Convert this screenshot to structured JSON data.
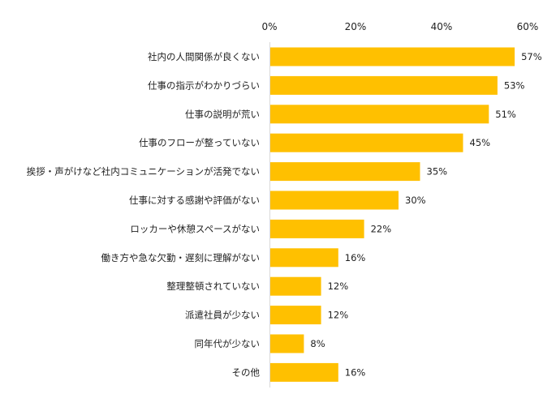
{
  "chart_data": {
    "type": "bar",
    "orientation": "horizontal",
    "title": "",
    "xlabel": "",
    "ylabel": "",
    "xlim": [
      0,
      60
    ],
    "ticks": [
      0,
      20,
      40,
      60
    ],
    "tick_labels": [
      "0%",
      "20%",
      "40%",
      "60%"
    ],
    "categories": [
      "社内の人間関係が良くない",
      "仕事の指示がわかりづらい",
      "仕事の説明が荒い",
      "仕事のフローが整っていない",
      "挨拶・声がけなど社内コミュニケーションが活発でない",
      "仕事に対する感謝や評価がない",
      "ロッカーや休憩スペースがない",
      "働き方や急な欠勤・遅刻に理解がない",
      "整理整頓されていない",
      "派遣社員が少ない",
      "同年代が少ない",
      "その他"
    ],
    "values": [
      57,
      53,
      51,
      45,
      35,
      30,
      22,
      16,
      12,
      12,
      8,
      16
    ],
    "value_labels": [
      "57%",
      "53%",
      "51%",
      "45%",
      "35%",
      "30%",
      "22%",
      "16%",
      "12%",
      "12%",
      "8%",
      "16%"
    ],
    "grid": false,
    "legend": "none",
    "colors": {
      "bar": "#FFC000",
      "axis": "#D9D9D9",
      "text": "#222222"
    }
  }
}
